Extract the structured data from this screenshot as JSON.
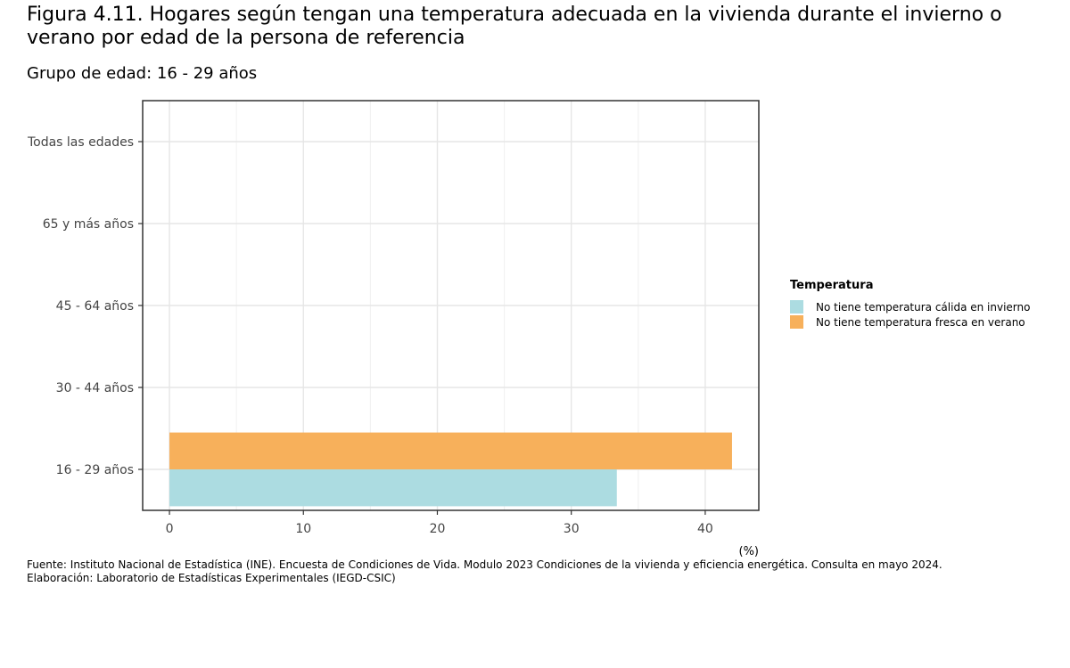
{
  "header": {
    "title": "Figura 4.11. Hogares según tengan una temperatura adecuada en la vivienda durante el invierno o verano por edad de la persona de referencia",
    "subtitle": "Grupo de edad: 16 - 29 años"
  },
  "legend": {
    "title": "Temperatura"
  },
  "footer": {
    "source": "Fuente: Instituto Nacional de Estadística (INE). Encuesta de Condiciones de Vida. Modulo 2023 Condiciones de la vivienda y eficiencia energética. Consulta en mayo 2024.",
    "credit": "Elaboración: Laboratorio de Estadísticas Experimentales (IEGD-CSIC)"
  },
  "chart_data": {
    "type": "bar",
    "orientation": "horizontal",
    "categories": [
      "16 - 29 años",
      "30 - 44 años",
      "45 - 64 años",
      "65 y más años",
      "Todas las edades"
    ],
    "series": [
      {
        "name": "No tiene temperatura cálida en invierno",
        "color": "#acdce1",
        "values": [
          33.4,
          null,
          null,
          null,
          null
        ]
      },
      {
        "name": "No tiene temperatura fresca en verano",
        "color": "#f7b05b",
        "values": [
          42.0,
          null,
          null,
          null,
          null
        ]
      }
    ],
    "xlabel": "(%)",
    "ylabel": "",
    "xlim": [
      -2,
      44
    ],
    "xticks": [
      0,
      10,
      20,
      30,
      40
    ],
    "grid": true,
    "legend_position": "right"
  }
}
